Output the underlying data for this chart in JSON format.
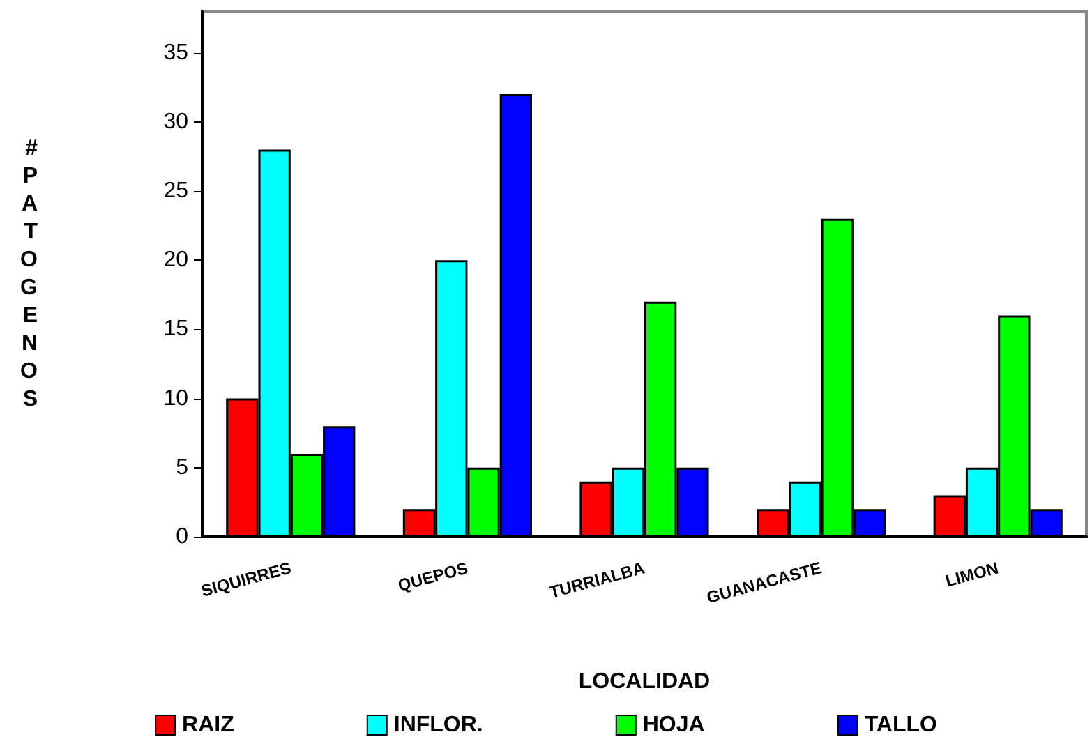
{
  "chart_data": {
    "type": "bar",
    "xlabel": "LOCALIDAD",
    "ylabel": "#PATOGENOS",
    "categories": [
      "SIQUIRRES",
      "QUEPOS",
      "TURRIALBA",
      "GUANACASTE",
      "LIMON"
    ],
    "series": [
      {
        "name": "RAIZ",
        "color": "#ff0000",
        "values": [
          10,
          2,
          4,
          2,
          3
        ]
      },
      {
        "name": "INFLOR.",
        "color": "#00ffff",
        "values": [
          28,
          20,
          5,
          4,
          5
        ]
      },
      {
        "name": "HOJA",
        "color": "#00ff00",
        "values": [
          6,
          5,
          17,
          23,
          16
        ]
      },
      {
        "name": "TALLO",
        "color": "#0000ff",
        "values": [
          8,
          32,
          5,
          2,
          2
        ]
      }
    ],
    "ylim": [
      0,
      38
    ],
    "yticks": [
      0,
      5,
      10,
      15,
      20,
      25,
      30,
      35
    ],
    "grid": false,
    "legend": "bottom"
  }
}
